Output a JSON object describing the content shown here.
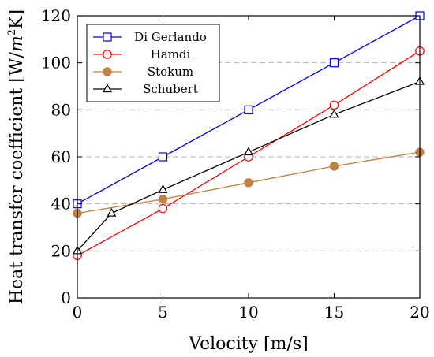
{
  "chart_data": {
    "type": "line",
    "xlabel": "Velocity [m/s]",
    "ylabel_prefix": "Heat transfer coefficient [W/",
    "ylabel_m": "m",
    "ylabel_exp": "2",
    "ylabel_suffix": "K]",
    "xlim": [
      0,
      20
    ],
    "ylim": [
      0,
      120
    ],
    "xticks": [
      "0",
      "5",
      "10",
      "15",
      "20"
    ],
    "yticks": [
      "0",
      "20",
      "40",
      "60",
      "80",
      "100",
      "120"
    ],
    "grid": "horizontal dashed",
    "legend_position": "top-left",
    "series": [
      {
        "name": "Di Gerlando",
        "color": "#0000ff",
        "marker": "square",
        "x": [
          0,
          5,
          10,
          15,
          20
        ],
        "y": [
          40,
          60,
          80,
          100,
          120
        ]
      },
      {
        "name": "Hamdi",
        "color": "#ff0000",
        "marker": "circle",
        "x": [
          0,
          5,
          10,
          15,
          20
        ],
        "y": [
          18,
          38,
          60,
          82,
          105
        ]
      },
      {
        "name": "Stokum",
        "color": "#c08040",
        "marker": "filled-circle",
        "x": [
          0,
          5,
          10,
          15,
          20
        ],
        "y": [
          36,
          42,
          49,
          56,
          62
        ]
      },
      {
        "name": "Schubert",
        "color": "#000000",
        "marker": "triangle",
        "x": [
          0,
          2,
          5,
          10,
          15,
          20
        ],
        "y": [
          20,
          36,
          46,
          62,
          78,
          92
        ]
      }
    ]
  }
}
